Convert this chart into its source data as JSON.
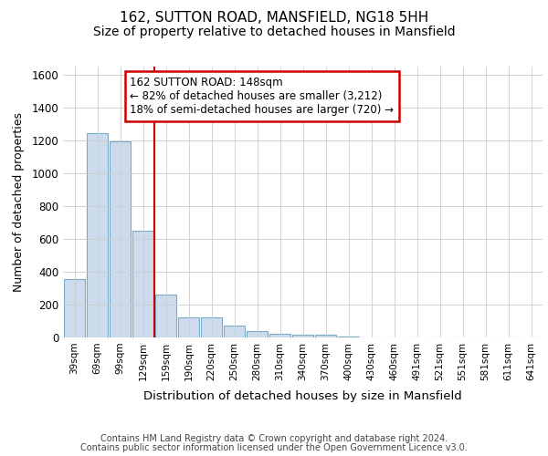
{
  "title1": "162, SUTTON ROAD, MANSFIELD, NG18 5HH",
  "title2": "Size of property relative to detached houses in Mansfield",
  "xlabel": "Distribution of detached houses by size in Mansfield",
  "ylabel": "Number of detached properties",
  "footer1": "Contains HM Land Registry data © Crown copyright and database right 2024.",
  "footer2": "Contains public sector information licensed under the Open Government Licence v3.0.",
  "annotation_title": "162 SUTTON ROAD: 148sqm",
  "annotation_line2": "← 82% of detached houses are smaller (3,212)",
  "annotation_line3": "18% of semi-detached houses are larger (720) →",
  "bar_color": "#ccdcec",
  "bar_edge_color": "#7aaac8",
  "vline_color": "#cc0000",
  "annotation_box_edge_color": "#cc0000",
  "categories": [
    "39sqm",
    "69sqm",
    "99sqm",
    "129sqm",
    "159sqm",
    "190sqm",
    "220sqm",
    "250sqm",
    "280sqm",
    "310sqm",
    "340sqm",
    "370sqm",
    "400sqm",
    "430sqm",
    "460sqm",
    "491sqm",
    "521sqm",
    "551sqm",
    "581sqm",
    "611sqm",
    "641sqm"
  ],
  "values": [
    353,
    1240,
    1193,
    648,
    263,
    120,
    120,
    70,
    38,
    22,
    18,
    15,
    8,
    0,
    0,
    0,
    0,
    0,
    0,
    0,
    0
  ],
  "ylim": [
    0,
    1650
  ],
  "yticks": [
    0,
    200,
    400,
    600,
    800,
    1000,
    1200,
    1400,
    1600
  ],
  "vline_x_index": 3.5,
  "bg_color": "#ffffff",
  "grid_color": "#cccccc",
  "title1_fontsize": 11,
  "title2_fontsize": 10
}
